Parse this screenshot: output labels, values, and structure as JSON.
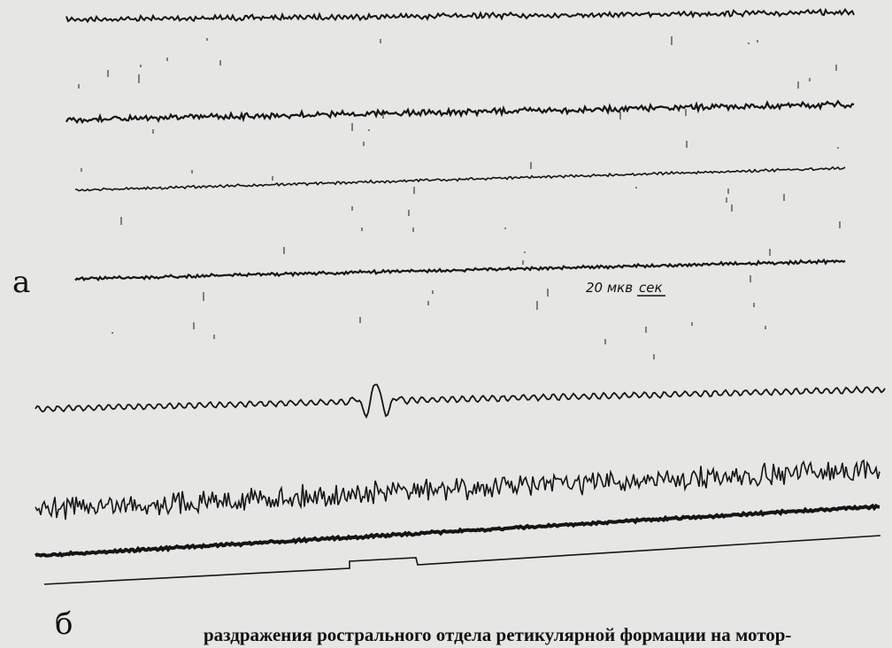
{
  "figure": {
    "panel_a": "а",
    "panel_b": "б",
    "scale_amplitude": "20 мкв",
    "scale_time": "сек",
    "caption": "раздражения рострального отдела ретикулярной формации на мотор-"
  }
}
